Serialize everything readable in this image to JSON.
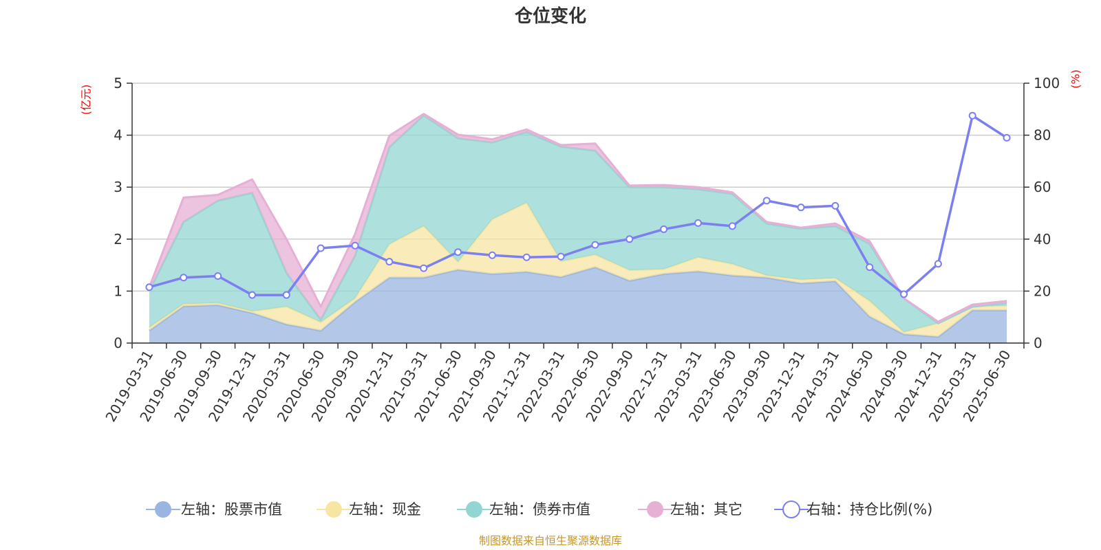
{
  "chart_data": {
    "type": "area",
    "title": "仓位变化",
    "left_unit": "(亿元)",
    "right_unit": "(%)",
    "source": "制图数据来自恒生聚源数据库",
    "categories": [
      "2019-03-31",
      "2019-06-30",
      "2019-09-30",
      "2019-12-31",
      "2020-03-31",
      "2020-06-30",
      "2020-09-30",
      "2020-12-31",
      "2021-03-31",
      "2021-06-30",
      "2021-09-30",
      "2021-12-31",
      "2022-03-31",
      "2022-06-30",
      "2022-09-30",
      "2022-12-31",
      "2023-03-31",
      "2023-06-30",
      "2023-09-30",
      "2023-12-31",
      "2024-03-31",
      "2024-06-30",
      "2024-09-30",
      "2024-12-31",
      "2025-03-31",
      "2025-06-30"
    ],
    "y_left": {
      "min": 0,
      "max": 5,
      "ticks": [
        0,
        1,
        2,
        3,
        4,
        5
      ]
    },
    "y_right": {
      "min": 0,
      "max": 100,
      "ticks": [
        0,
        20,
        40,
        60,
        80,
        100
      ]
    },
    "series": [
      {
        "name": "左轴：股票市值",
        "axis": "left",
        "kind": "area",
        "color": "#9ab5e0",
        "values": [
          0.24,
          0.71,
          0.73,
          0.58,
          0.36,
          0.24,
          0.79,
          1.26,
          1.26,
          1.41,
          1.33,
          1.37,
          1.27,
          1.46,
          1.2,
          1.33,
          1.38,
          1.3,
          1.26,
          1.15,
          1.19,
          0.51,
          0.17,
          0.12,
          0.63,
          0.63
        ]
      },
      {
        "name": "左轴：现金",
        "axis": "left",
        "kind": "area",
        "color": "#f7e6a3",
        "values": [
          0.06,
          0.04,
          0.04,
          0.03,
          0.34,
          0.16,
          0.07,
          0.64,
          0.99,
          0.15,
          1.05,
          1.33,
          0.3,
          0.24,
          0.2,
          0.09,
          0.27,
          0.22,
          0.04,
          0.07,
          0.06,
          0.3,
          0.04,
          0.26,
          0.07,
          0.09
        ]
      },
      {
        "name": "左轴：债券市值",
        "axis": "left",
        "kind": "area",
        "color": "#93d5d3",
        "values": [
          0.7,
          1.58,
          1.97,
          2.28,
          0.65,
          0.05,
          0.82,
          1.87,
          2.13,
          2.38,
          1.48,
          1.36,
          2.21,
          2.0,
          1.6,
          1.58,
          1.31,
          1.35,
          1.0,
          0.98,
          1.0,
          1.1,
          0.65,
          0.0,
          0.0,
          0.05
        ]
      },
      {
        "name": "左轴：其它",
        "axis": "left",
        "kind": "area",
        "color": "#e5b0d4",
        "values": [
          0.07,
          0.47,
          0.11,
          0.26,
          0.65,
          0.25,
          0.42,
          0.22,
          0.03,
          0.07,
          0.06,
          0.05,
          0.03,
          0.14,
          0.03,
          0.04,
          0.04,
          0.03,
          0.03,
          0.02,
          0.05,
          0.05,
          0.0,
          0.03,
          0.04,
          0.04
        ]
      },
      {
        "name": "右轴：持仓比例(%)",
        "axis": "right",
        "kind": "line",
        "color": "#7b7ff0",
        "values": [
          21.5,
          25.2,
          25.8,
          18.5,
          18.5,
          36.5,
          37.5,
          31.3,
          28.8,
          35.0,
          33.8,
          33.0,
          33.3,
          37.8,
          40.0,
          43.8,
          46.2,
          45.0,
          54.8,
          52.2,
          52.8,
          29.2,
          18.8,
          30.5,
          87.5,
          79.0
        ]
      }
    ],
    "grid": true,
    "legend_position": "bottom"
  }
}
